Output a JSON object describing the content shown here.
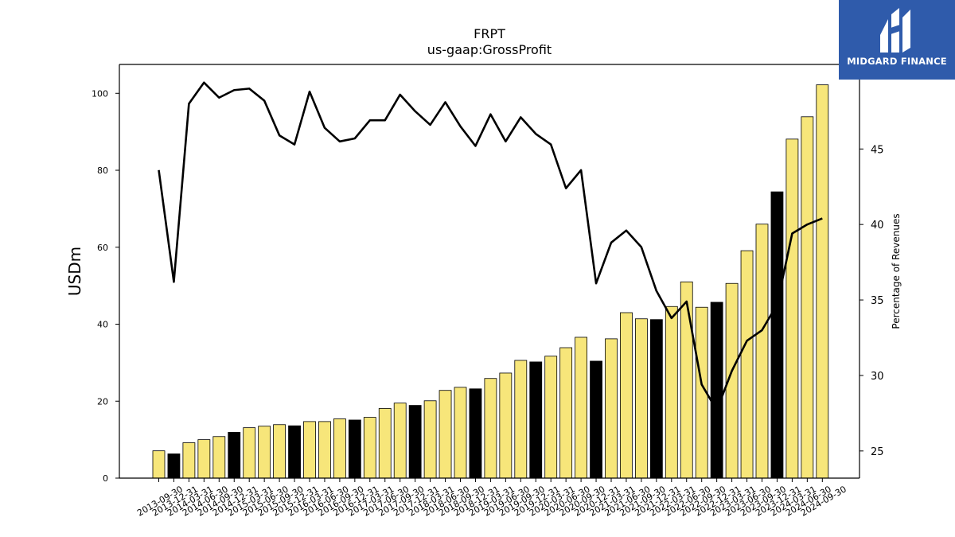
{
  "brand": {
    "name": "MIDGARD FINANCE",
    "background_color": "#2f5bab",
    "text_color": "#ffffff"
  },
  "chart_data": {
    "type": "bar",
    "title": "FRPT",
    "subtitle": "us-gaap:GrossProfit",
    "ylabel": "USDm",
    "y2label": "Percentage of Revenues",
    "ylim": [
      0,
      107.5
    ],
    "y2lim": [
      23.2,
      50.6
    ],
    "yticks": [
      0,
      20,
      40,
      60,
      80,
      100
    ],
    "y2ticks": [
      25,
      30,
      35,
      40,
      45
    ],
    "grid": false,
    "legend": "none",
    "colors": {
      "quarter_bar": "#f7e67a",
      "fiscal_year_bar": "#000000",
      "bar_edge": "#000000",
      "margin_line": "#000000"
    },
    "categories": [
      "2013-09-30",
      "2013-12-31",
      "2014-03-31",
      "2014-06-30",
      "2014-09-30",
      "2014-12-31",
      "2015-03-31",
      "2015-06-30",
      "2015-09-30",
      "2015-12-31",
      "2016-03-31",
      "2016-06-30",
      "2016-09-30",
      "2016-12-31",
      "2017-03-31",
      "2017-06-30",
      "2017-09-30",
      "2017-12-31",
      "2018-03-31",
      "2018-06-30",
      "2018-09-30",
      "2018-12-31",
      "2019-03-31",
      "2019-06-30",
      "2019-09-30",
      "2019-12-31",
      "2020-03-31",
      "2020-06-30",
      "2020-09-30",
      "2020-12-31",
      "2021-03-31",
      "2021-06-30",
      "2021-09-30",
      "2021-12-31",
      "2022-03-31",
      "2022-06-30",
      "2022-09-30",
      "2022-12-31",
      "2023-03-31",
      "2023-06-30",
      "2023-09-30",
      "2023-12-31",
      "2024-03-31",
      "2024-06-30",
      "2024-09-30"
    ],
    "series": [
      {
        "kind": "bar",
        "axis": "left",
        "values": [
          7.1,
          6.3,
          9.2,
          10.0,
          10.8,
          11.9,
          13.1,
          13.5,
          13.9,
          13.6,
          14.7,
          14.7,
          15.4,
          15.1,
          15.8,
          18.1,
          19.5,
          18.9,
          20.1,
          22.8,
          23.6,
          23.2,
          25.9,
          27.3,
          30.6,
          30.2,
          31.7,
          33.9,
          36.6,
          30.4,
          36.2,
          43.0,
          41.4,
          41.2,
          44.6,
          51.0,
          44.4,
          45.7,
          50.6,
          59.1,
          66.0,
          74.4,
          88.1,
          93.9,
          102.2
        ],
        "fiscal_year_end": [
          false,
          true,
          false,
          false,
          false,
          true,
          false,
          false,
          false,
          true,
          false,
          false,
          false,
          true,
          false,
          false,
          false,
          true,
          false,
          false,
          false,
          true,
          false,
          false,
          false,
          true,
          false,
          false,
          false,
          true,
          false,
          false,
          false,
          true,
          false,
          false,
          false,
          true,
          false,
          false,
          false,
          true,
          false,
          false,
          false
        ]
      },
      {
        "kind": "line",
        "axis": "right",
        "values": [
          43.6,
          36.2,
          48.0,
          49.4,
          48.4,
          48.9,
          49.0,
          48.2,
          45.9,
          45.3,
          48.8,
          46.4,
          45.5,
          45.7,
          46.9,
          46.9,
          48.6,
          47.5,
          46.6,
          48.1,
          46.5,
          45.2,
          47.3,
          45.5,
          47.1,
          46.0,
          45.3,
          42.4,
          43.6,
          36.1,
          38.8,
          39.6,
          38.5,
          35.6,
          33.8,
          34.9,
          29.4,
          27.7,
          30.3,
          32.3,
          33.0,
          34.7,
          39.4,
          40.0,
          40.4
        ]
      }
    ]
  }
}
